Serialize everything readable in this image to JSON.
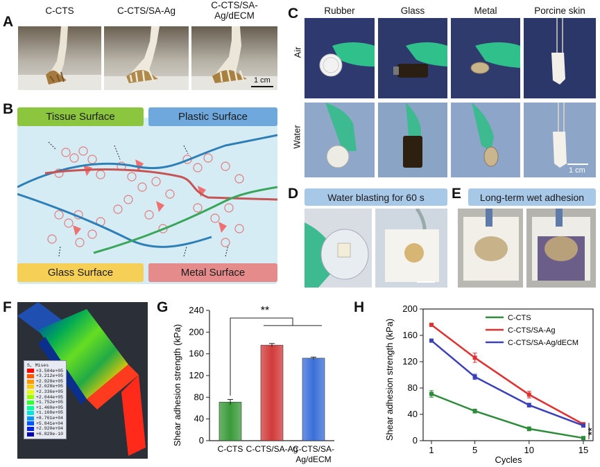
{
  "panel_letters": {
    "a": "A",
    "b": "B",
    "c": "C",
    "d": "D",
    "e": "E",
    "f": "F",
    "g": "G",
    "h": "H"
  },
  "panel_a": {
    "titles": [
      "C-CTS",
      "C-CTS/SA-Ag",
      "C-CTS/SA-\nAg/dECM"
    ],
    "scale_label": "1 cm"
  },
  "panel_b": {
    "tissue": "Tissue Surface",
    "plastic": "Plastic Surface",
    "glass": "Glass Surface",
    "metal": "Metal Surface",
    "colors": {
      "tissue": "#8cc63f",
      "plastic": "#6fa8dc",
      "glass": "#f6cf56",
      "metal": "#e58b8b"
    }
  },
  "panel_c": {
    "columns": [
      "Rubber",
      "Glass",
      "Metal",
      "Porcine skin"
    ],
    "rows": [
      "Air",
      "Water"
    ],
    "scale_label": "1 cm"
  },
  "panel_d": {
    "title": "Water blasting for 60 s"
  },
  "panel_e": {
    "title": "Long-term wet adhesion"
  },
  "panel_f": {
    "legend_title": "S, Mises",
    "legend_values": [
      "+3.504e+05",
      "+3.212e+05",
      "+2.920e+05",
      "+2.628e+05",
      "+2.336e+05",
      "+2.044e+05",
      "+1.752e+05",
      "+1.460e+05",
      "+1.168e+05",
      "+8.761e+04",
      "+5.841e+04",
      "+2.920e+04",
      "+6.829e-10"
    ],
    "legend_colors": [
      "#ff0000",
      "#ff5a00",
      "#ff9900",
      "#ffcc00",
      "#e6ff00",
      "#99ff00",
      "#33ff33",
      "#00ff99",
      "#00e6e6",
      "#0099ff",
      "#0055ff",
      "#0022dd",
      "#0000aa"
    ]
  },
  "chart_data": [
    {
      "type": "bar",
      "ylabel": "Shear adhesion strength (kPa)",
      "categories": [
        "C-CTS",
        "C-CTS/SA-Ag",
        "C-CTS/SA-\nAg/dECM"
      ],
      "values": [
        71,
        176,
        152
      ],
      "errors": [
        5,
        3,
        2
      ],
      "colors": [
        "#3a9a3a",
        "#d23a3a",
        "#3a6fd8"
      ],
      "ylim": [
        0,
        240
      ],
      "yticks": [
        0,
        40,
        80,
        120,
        160,
        200,
        240
      ],
      "significance": "**"
    },
    {
      "type": "line",
      "xlabel": "Cycles",
      "ylabel": "Shear adhesion strength (kPa)",
      "x": [
        1,
        5,
        10,
        15
      ],
      "ylim": [
        0,
        200
      ],
      "yticks": [
        0,
        40,
        80,
        120,
        160,
        200
      ],
      "significance": "**",
      "series": [
        {
          "name": "C-CTS",
          "color": "#2e8b3a",
          "values": [
            71,
            45,
            18,
            4
          ],
          "errors": [
            5,
            3,
            3,
            1
          ]
        },
        {
          "name": "C-CTS/SA-Ag",
          "color": "#e03030",
          "values": [
            176,
            126,
            70,
            25
          ],
          "errors": [
            2,
            7,
            5,
            2
          ]
        },
        {
          "name": "C-CTS/SA-Ag/dECM",
          "color": "#3b3fb8",
          "values": [
            152,
            97,
            54,
            23
          ],
          "errors": [
            2,
            4,
            3,
            2
          ]
        }
      ]
    }
  ]
}
